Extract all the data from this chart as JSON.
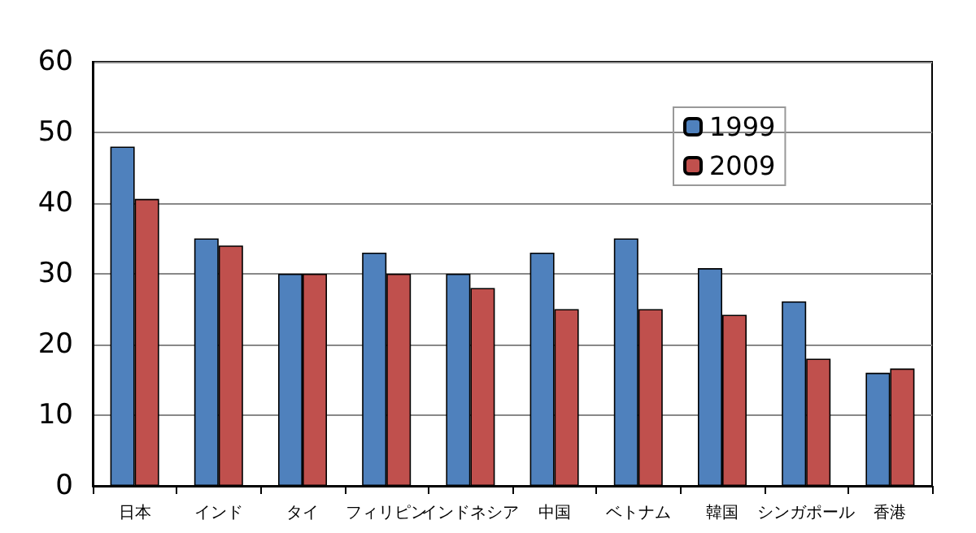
{
  "chart_data": {
    "type": "bar",
    "categories": [
      "日本",
      "インド",
      "タイ",
      "フィリピン",
      "インドネシア",
      "中国",
      "ベトナム",
      "韓国",
      "シンガポール",
      "香港"
    ],
    "series": [
      {
        "name": "1999",
        "color": "#4f81bd",
        "values": [
          48,
          35,
          30,
          33,
          30,
          33,
          35,
          30.8,
          26.1,
          16
        ]
      },
      {
        "name": "2009",
        "color": "#c0504d",
        "values": [
          40.6,
          34,
          30,
          30,
          28,
          25,
          25,
          24.2,
          18,
          16.6
        ]
      }
    ],
    "ylim": [
      0,
      60
    ],
    "yticks": [
      0,
      10,
      20,
      30,
      40,
      50,
      60
    ],
    "grid": "y",
    "legend": "top right"
  }
}
